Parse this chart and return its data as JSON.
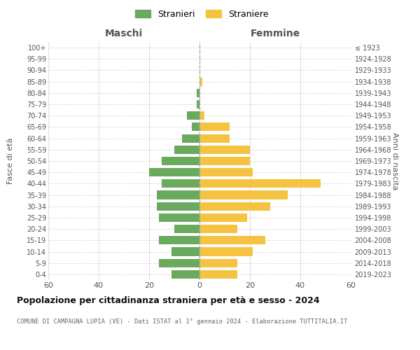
{
  "age_groups": [
    "0-4",
    "5-9",
    "10-14",
    "15-19",
    "20-24",
    "25-29",
    "30-34",
    "35-39",
    "40-44",
    "45-49",
    "50-54",
    "55-59",
    "60-64",
    "65-69",
    "70-74",
    "75-79",
    "80-84",
    "85-89",
    "90-94",
    "95-99",
    "100+"
  ],
  "birth_years": [
    "2019-2023",
    "2014-2018",
    "2009-2013",
    "2004-2008",
    "1999-2003",
    "1994-1998",
    "1989-1993",
    "1984-1988",
    "1979-1983",
    "1974-1978",
    "1969-1973",
    "1964-1968",
    "1959-1963",
    "1954-1958",
    "1949-1953",
    "1944-1948",
    "1939-1943",
    "1934-1938",
    "1929-1933",
    "1924-1928",
    "≤ 1923"
  ],
  "maschi": [
    11,
    16,
    11,
    16,
    10,
    16,
    17,
    17,
    15,
    20,
    15,
    10,
    7,
    3,
    5,
    1,
    1,
    0,
    0,
    0,
    0
  ],
  "femmine": [
    15,
    15,
    21,
    26,
    15,
    19,
    28,
    35,
    48,
    21,
    20,
    20,
    12,
    12,
    2,
    0,
    0,
    1,
    0,
    0,
    0
  ],
  "maschi_color": "#6aaa5f",
  "femmine_color": "#f5c242",
  "title": "Popolazione per cittadinanza straniera per età e sesso - 2024",
  "subtitle": "COMUNE DI CAMPAGNA LUPIA (VE) - Dati ISTAT al 1° gennaio 2024 - Elaborazione TUTTITALIA.IT",
  "legend_maschi": "Stranieri",
  "legend_femmine": "Straniere",
  "xlabel_left": "Maschi",
  "xlabel_right": "Femmine",
  "ylabel_left": "Fasce di età",
  "ylabel_right": "Anni di nascita",
  "xlim": 60,
  "background_color": "#ffffff",
  "grid_color": "#dddddd",
  "dashed_line_color": "#aaaaaa"
}
